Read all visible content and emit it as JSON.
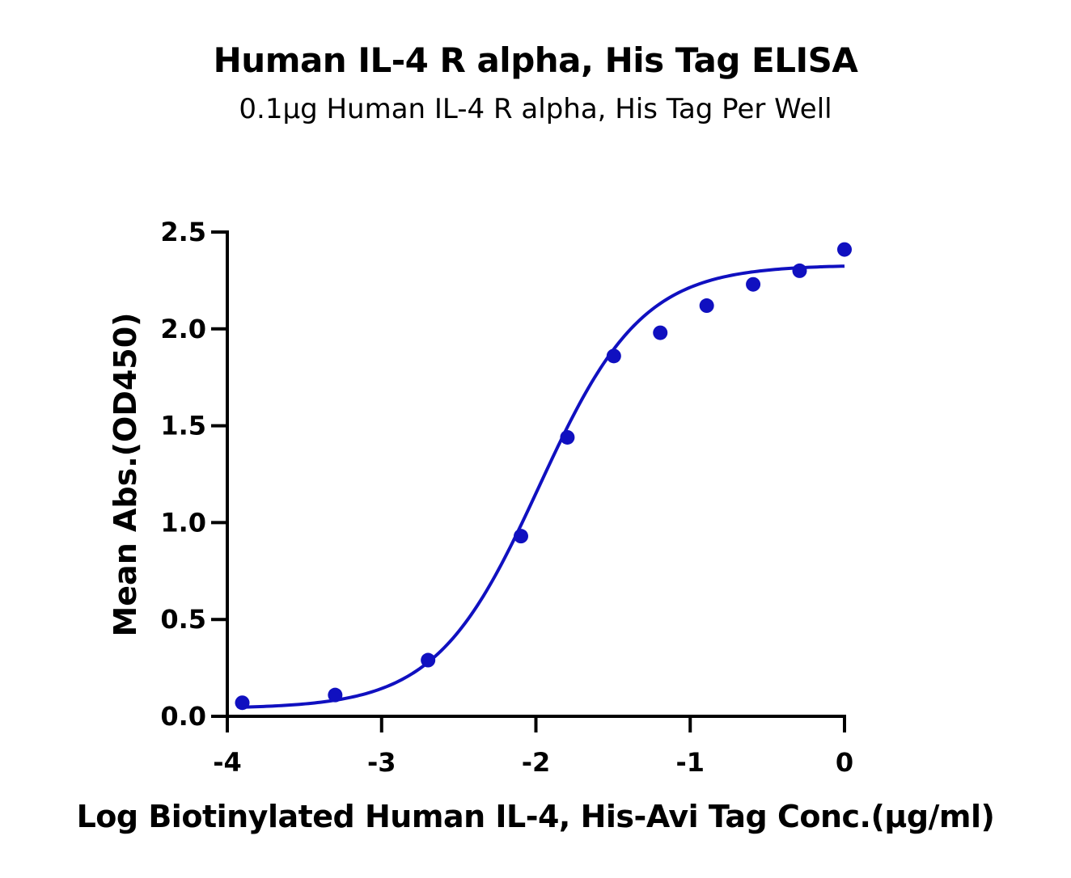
{
  "chart_data": {
    "type": "scatter",
    "title": "Human IL-4 R alpha, His Tag ELISA",
    "subtitle": "0.1μg Human IL-4 R alpha, His Tag Per Well",
    "xlabel": "Log Biotinylated Human IL-4, His-Avi Tag Conc.(μg/ml)",
    "ylabel": "Mean Abs.(OD450)",
    "xlim": [
      -4,
      0
    ],
    "ylim": [
      0,
      2.5
    ],
    "x_ticks": [
      -4,
      -3,
      -2,
      -1,
      0
    ],
    "x_tick_labels": [
      "-4",
      "-3",
      "-2",
      "-1",
      "0"
    ],
    "y_ticks": [
      0,
      0.5,
      1.0,
      1.5,
      2.0,
      2.5
    ],
    "y_tick_labels": [
      "0.0",
      "0.5",
      "1.0",
      "1.5",
      "2.0",
      "2.5"
    ],
    "grid": false,
    "color": "#1010c0",
    "points": {
      "x": [
        -3.903,
        -3.301,
        -2.699,
        -2.097,
        -1.796,
        -1.495,
        -1.194,
        -0.893,
        -0.592,
        -0.291,
        0.0
      ],
      "y": [
        0.07,
        0.11,
        0.29,
        0.93,
        1.44,
        1.86,
        1.98,
        2.12,
        2.23,
        2.3,
        2.41
      ]
    },
    "fit_curve": {
      "model": "4PL",
      "bottom": 0.04,
      "top": 2.33,
      "logEC50": -1.98,
      "hill_slope": 1.3
    }
  }
}
